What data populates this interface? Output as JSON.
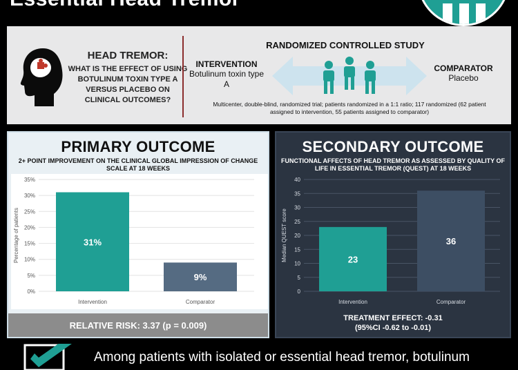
{
  "header": {
    "title": "Essential Head Tremor"
  },
  "study": {
    "question_title": "HEAD TREMOR:",
    "question_text": "WHAT IS THE EFFECT OF USING BOTULINUM TOXIN TYPE A VERSUS PLACEBO ON CLINICAL OUTCOMES?",
    "design_title": "RANDOMIZED CONTROLLED STUDY",
    "intervention_label": "INTERVENTION",
    "intervention_value": "Botulinum toxin type A",
    "comparator_label": "COMPARATOR",
    "comparator_value": "Placebo",
    "description": "Multicenter, double-blind, randomized trial; patients randomized in a 1:1 ratio; 117 randomized (62 patient assigned to intervention, 55 patients assigned to comparator)"
  },
  "primary": {
    "title": "PRIMARY OUTCOME",
    "subtitle": "2+ POINT IMPROVEMENT ON THE CLINICAL GLOBAL IMPRESSION OF CHANGE SCALE AT 18 WEEKS",
    "footer": "RELATIVE RISK: 3.37 (p = 0.009)"
  },
  "secondary": {
    "title": "SECONDARY OUTCOME",
    "subtitle": "FUNCTIONAL AFFECTS OF HEAD TREMOR AS ASSESSED BY QUALITY OF LIFE IN ESSENTIAL TREMOR (QUEST) AT 18 WEEKS",
    "footer_line1": "TREATMENT EFFECT: -0.31",
    "footer_line2": "(95%CI -0.62 to -0.01)"
  },
  "chart_data": [
    {
      "type": "bar",
      "categories": [
        "Intervention",
        "Comparator"
      ],
      "values": [
        31,
        9
      ],
      "data_labels": [
        "31%",
        "9%"
      ],
      "ylabel": "Percentage of patients",
      "yticks": [
        "0%",
        "5%",
        "10%",
        "15%",
        "20%",
        "25%",
        "30%",
        "35%"
      ],
      "ylim": [
        0,
        35
      ],
      "grid": true,
      "colors": [
        "#1f9f94",
        "#556b82"
      ]
    },
    {
      "type": "bar",
      "categories": [
        "Intervention",
        "Comparator"
      ],
      "values": [
        23,
        36
      ],
      "data_labels": [
        "23",
        "36"
      ],
      "ylabel": "Median QUEST score",
      "yticks": [
        "0",
        "5",
        "10",
        "15",
        "20",
        "25",
        "30",
        "35",
        "40"
      ],
      "ylim": [
        0,
        40
      ],
      "grid": true,
      "colors": [
        "#1f9f94",
        "#3d4e63"
      ]
    }
  ],
  "conclusion": {
    "text": "Among patients with isolated or essential head tremor, botulinum"
  },
  "colors": {
    "accent": "#1f9f94",
    "dark_panel": "#2b3441",
    "divider": "#8b2d2d"
  }
}
